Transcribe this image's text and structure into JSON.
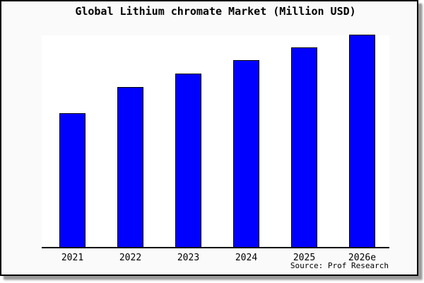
{
  "figure": {
    "background_color": "#fafafa",
    "plot_background_color": "#ffffff",
    "frame_color": "#000000",
    "shadow_color": "#999999"
  },
  "source_note": "Source: Prof Research",
  "chart_data": {
    "type": "bar",
    "title": "Global Lithium chromate Market (Million USD)",
    "categories": [
      "2021",
      "2022",
      "2023",
      "2024",
      "2025",
      "2026e"
    ],
    "values": [
      63,
      75.3,
      81.7,
      88,
      94,
      100
    ],
    "unit": "Million USD (relative scale, y-axis unlabeled)",
    "xlabel": "",
    "ylabel": "",
    "ylim": [
      0,
      100.3
    ],
    "y_axis_labels_visible": false,
    "gridlines": false,
    "legend": "none",
    "bar_color": "#0000ff",
    "bar_edge_color": "#000000"
  }
}
